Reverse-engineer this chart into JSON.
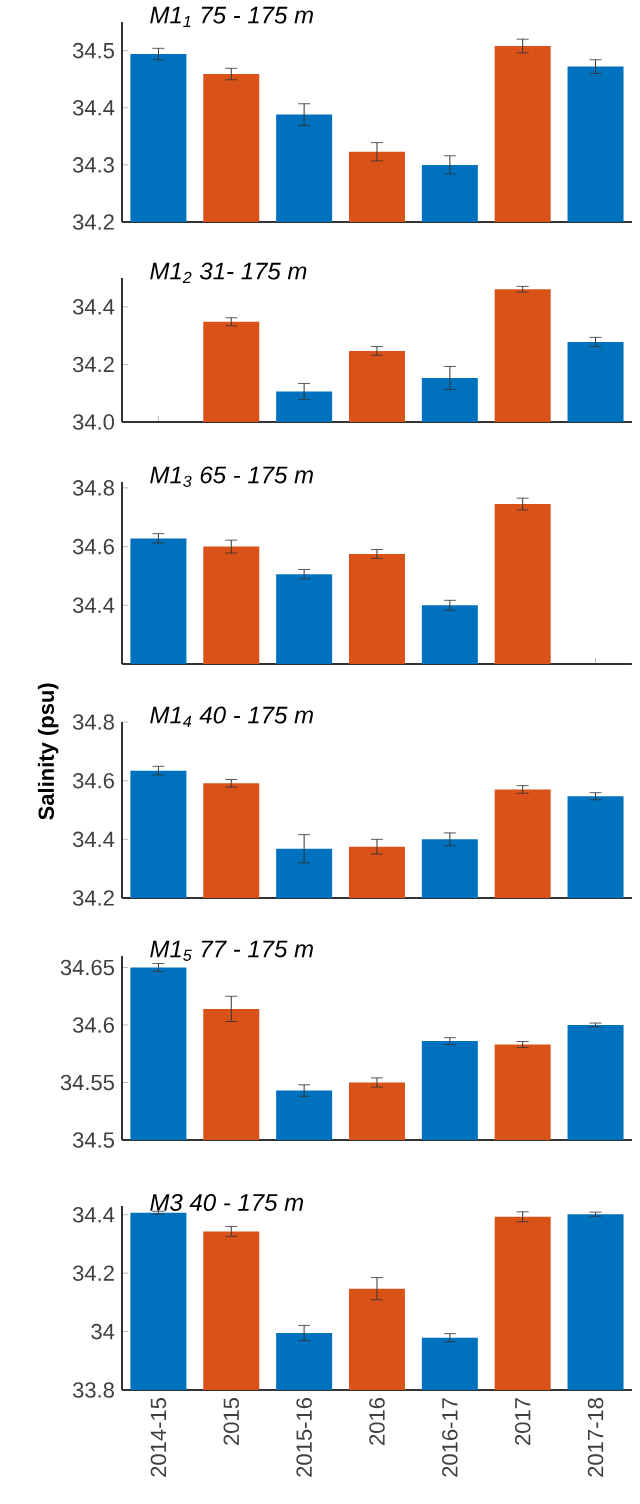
{
  "chart_data": [
    {
      "type": "bar",
      "title": "M1$_{1}$ 75 - 175 m",
      "categories": [
        "2014-15",
        "2015",
        "2015-16",
        "2016",
        "2016-17",
        "2017",
        "2017-18"
      ],
      "values": [
        34.494,
        34.459,
        34.388,
        34.323,
        34.3,
        34.508,
        34.472
      ],
      "errors": [
        0.01,
        0.01,
        0.019,
        0.016,
        0.016,
        0.012,
        0.012
      ],
      "colors": [
        "#0072bd",
        "#d95319",
        "#0072bd",
        "#d95319",
        "#0072bd",
        "#d95319",
        "#0072bd"
      ],
      "ylim": [
        34.2,
        34.55
      ],
      "yticks": [
        34.2,
        34.3,
        34.4,
        34.5
      ],
      "tick_labels": "y"
    },
    {
      "type": "bar",
      "title": "M1$_{2}$ 31- 175 m",
      "categories": [
        "2014-15",
        "2015",
        "2015-16",
        "2016",
        "2016-17",
        "2017",
        "2017-18"
      ],
      "values": [
        null,
        34.348,
        34.106,
        34.247,
        34.153,
        34.461,
        34.278
      ],
      "errors": [
        null,
        0.014,
        0.028,
        0.015,
        0.04,
        0.01,
        0.016
      ],
      "colors": [
        "#0072bd",
        "#d95319",
        "#0072bd",
        "#d95319",
        "#0072bd",
        "#d95319",
        "#0072bd"
      ],
      "ylim": [
        34.0,
        34.5
      ],
      "yticks": [
        {
          "value": 34.0,
          "label": "34.0"
        },
        34.2,
        34.4
      ],
      "tick_labels": "y"
    },
    {
      "type": "bar",
      "title": "M1$_{3}$ 65 - 175 m",
      "ylabel": "Salinity (psu)",
      "categories": [
        "2014-15",
        "2015",
        "2015-16",
        "2016",
        "2016-17",
        "2017",
        "2017-18"
      ],
      "values": [
        34.628,
        34.6,
        34.506,
        34.575,
        34.4,
        34.745,
        null
      ],
      "errors": [
        0.016,
        0.022,
        0.016,
        0.015,
        0.017,
        0.02,
        null
      ],
      "colors": [
        "#0072bd",
        "#d95319",
        "#0072bd",
        "#d95319",
        "#0072bd",
        "#d95319",
        "#0072bd"
      ],
      "ylim": [
        34.2,
        34.82
      ],
      "yticks": [
        34.4,
        34.6,
        34.8
      ],
      "tick_labels": "y"
    },
    {
      "type": "bar",
      "title": "M1$_{4}$ 40 - 175 m",
      "categories": [
        "2014-15",
        "2015",
        "2015-16",
        "2016",
        "2016-17",
        "2017",
        "2017-18"
      ],
      "values": [
        34.634,
        34.591,
        34.368,
        34.375,
        34.4,
        34.57,
        34.547
      ],
      "errors": [
        0.015,
        0.013,
        0.048,
        0.025,
        0.022,
        0.013,
        0.012
      ],
      "colors": [
        "#0072bd",
        "#d95319",
        "#0072bd",
        "#d95319",
        "#0072bd",
        "#d95319",
        "#0072bd"
      ],
      "ylim": [
        34.2,
        34.8
      ],
      "yticks": [
        34.2,
        34.4,
        34.6,
        34.8
      ],
      "tick_labels": "y"
    },
    {
      "type": "bar",
      "title": "M1$_{5}$ 77 - 175 m",
      "categories": [
        "2014-15",
        "2015",
        "2015-16",
        "2016",
        "2016-17",
        "2017",
        "2017-18"
      ],
      "values": [
        34.65,
        34.614,
        34.543,
        34.55,
        34.586,
        34.583,
        34.6
      ],
      "errors": [
        0.0035,
        0.011,
        0.005,
        0.004,
        0.003,
        0.0026,
        0.0017
      ],
      "colors": [
        "#0072bd",
        "#d95319",
        "#0072bd",
        "#d95319",
        "#0072bd",
        "#d95319",
        "#0072bd"
      ],
      "ylim": [
        34.5,
        34.66
      ],
      "yticks": [
        34.5,
        34.55,
        34.6,
        34.65
      ],
      "tick_labels": "y"
    },
    {
      "type": "bar",
      "title": "M3  40 - 175 m",
      "categories": [
        "2014-15",
        "2015",
        "2015-16",
        "2016",
        "2016-17",
        "2017",
        "2017-18"
      ],
      "values": [
        34.407,
        34.343,
        33.995,
        34.147,
        33.979,
        34.393,
        34.402
      ],
      "errors": [
        0.005,
        0.017,
        0.026,
        0.038,
        0.014,
        0.017,
        0.007
      ],
      "colors": [
        "#0072bd",
        "#d95319",
        "#0072bd",
        "#d95319",
        "#0072bd",
        "#d95319",
        "#0072bd"
      ],
      "ylim": [
        33.8,
        34.43
      ],
      "yticks": [
        33.8,
        34,
        34.2,
        34.4
      ]
    }
  ]
}
